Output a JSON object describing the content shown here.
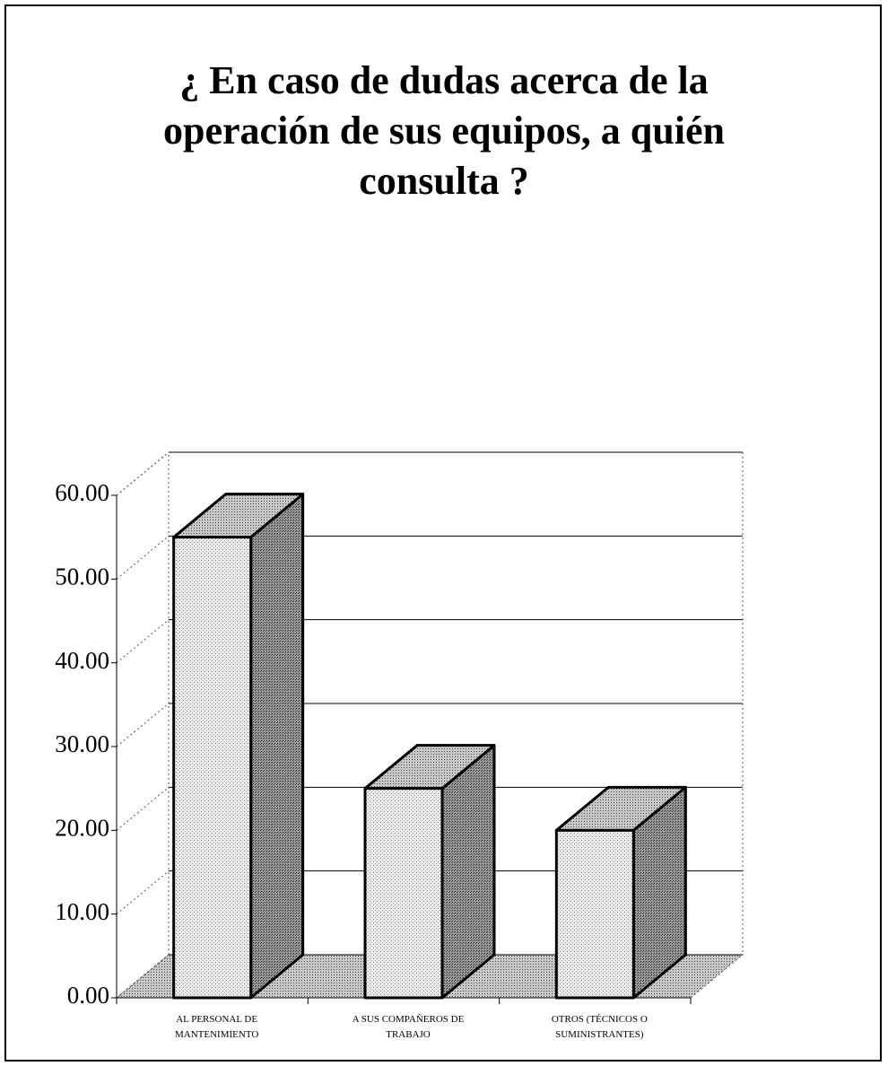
{
  "chart_data": {
    "type": "bar3d",
    "title": "¿ En caso de dudas acerca de la operación de sus equipos, a quién consulta ?",
    "categories": [
      "AL PERSONAL DE MANTENIMIENTO",
      "A SUS COMPAÑEROS DE TRABAJO",
      "OTROS (TÉCNICOS O SUMINISTRANTES)"
    ],
    "values": [
      55,
      25,
      20
    ],
    "color": "#d9d9d9",
    "ylim": [
      0,
      60
    ],
    "yticks": [
      {
        "value": 0,
        "label": "0.00"
      },
      {
        "value": 10,
        "label": "10.00"
      },
      {
        "value": 20,
        "label": "20.00"
      },
      {
        "value": 30,
        "label": "30.00"
      },
      {
        "value": 40,
        "label": "40.00"
      },
      {
        "value": 50,
        "label": "50.00"
      },
      {
        "value": 60,
        "label": "60.00"
      }
    ],
    "grid": true
  }
}
